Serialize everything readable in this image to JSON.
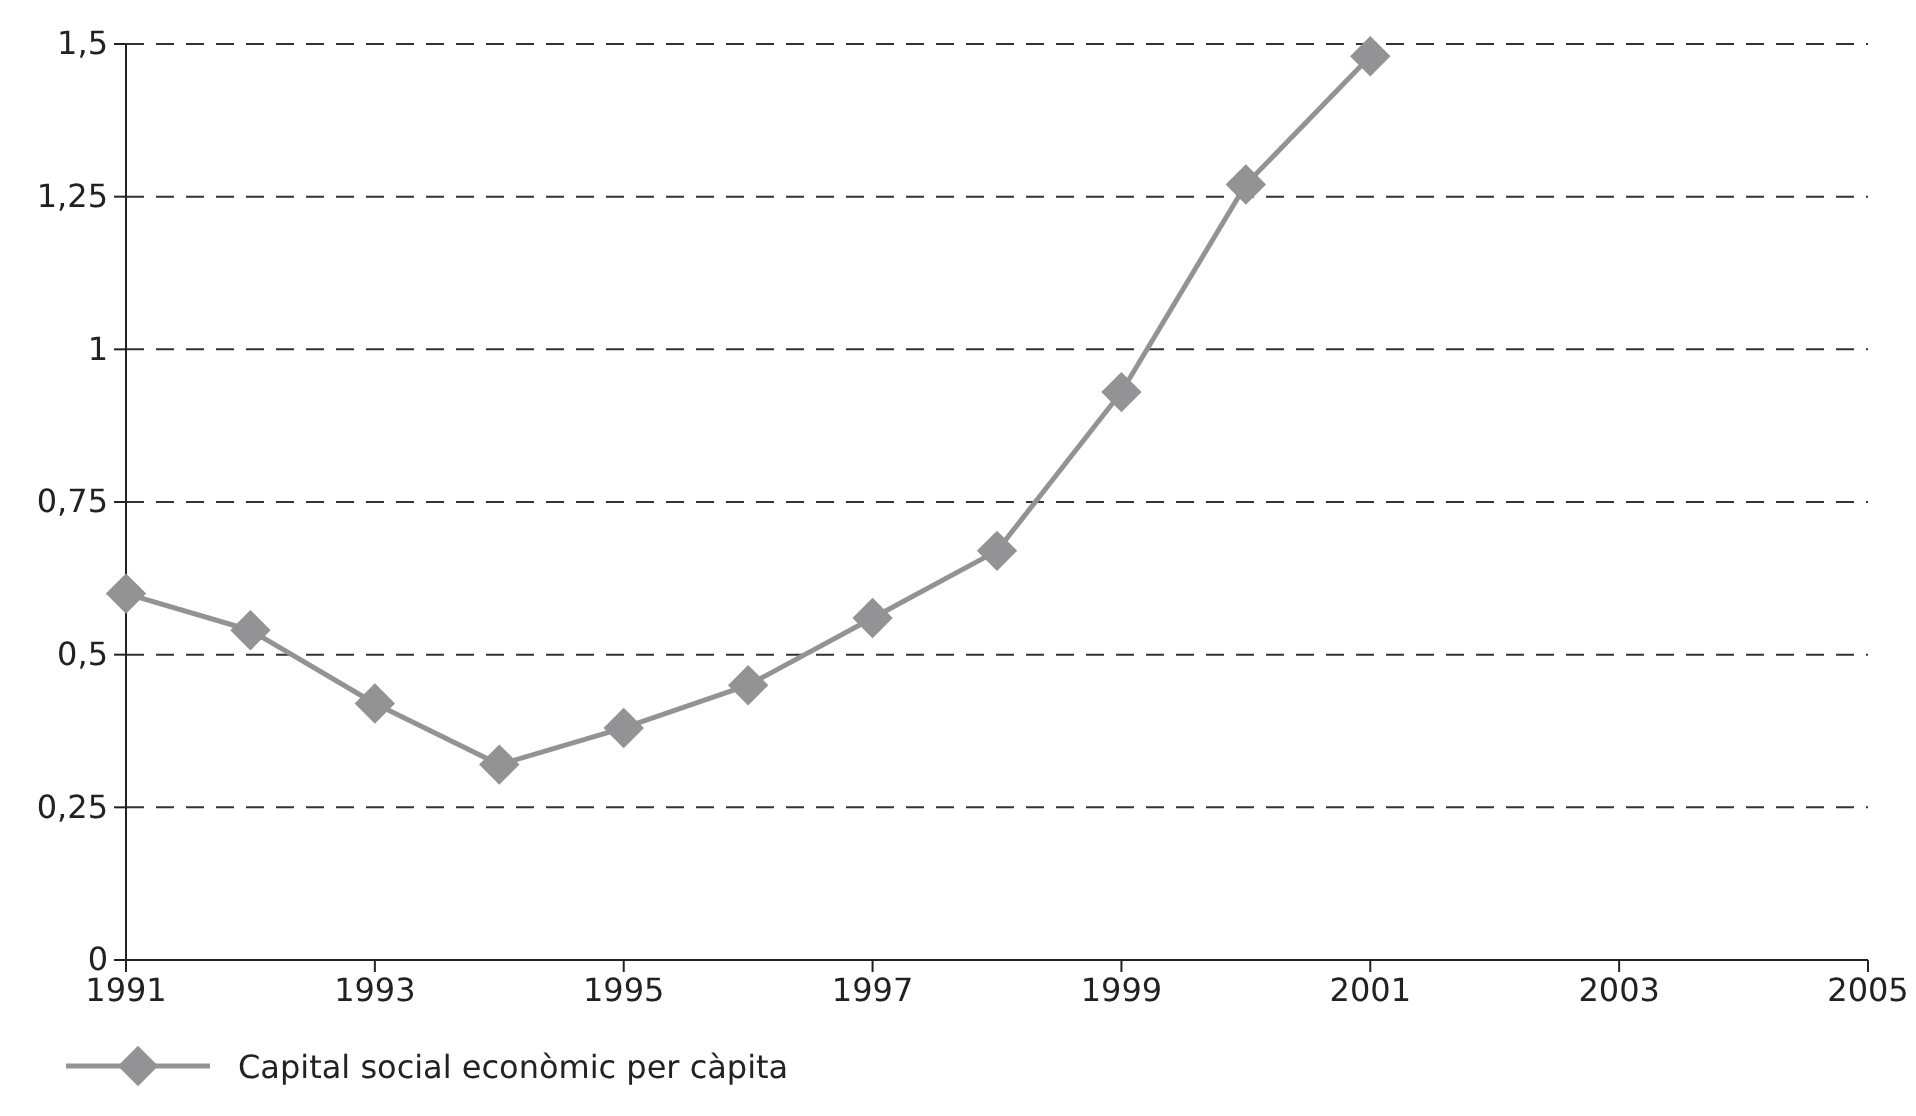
{
  "chart_data": {
    "type": "line",
    "x": [
      1991,
      1992,
      1993,
      1994,
      1995,
      1996,
      1997,
      1998,
      1999,
      2000,
      2001
    ],
    "series": [
      {
        "name": "Capital social econòmic per càpita",
        "color": "#939396",
        "values": [
          0.6,
          0.54,
          0.42,
          0.32,
          0.38,
          0.45,
          0.56,
          0.67,
          0.93,
          1.27,
          1.48
        ]
      }
    ],
    "xlim": [
      1991,
      2005
    ],
    "xticks": [
      1991,
      1993,
      1995,
      1997,
      1999,
      2001,
      2003,
      2005
    ],
    "ylim": [
      0,
      1.5
    ],
    "yticks": [
      {
        "value": 0,
        "label": "0"
      },
      {
        "value": 0.25,
        "label": "0,25"
      },
      {
        "value": 0.5,
        "label": "0,5"
      },
      {
        "value": 0.75,
        "label": "0,75"
      },
      {
        "value": 1,
        "label": "1"
      },
      {
        "value": 1.25,
        "label": "1,25"
      },
      {
        "value": 1.5,
        "label": "1,5"
      }
    ],
    "grid": "y",
    "legend": "bottom left",
    "marker": "diamond",
    "line_style": "solid"
  }
}
